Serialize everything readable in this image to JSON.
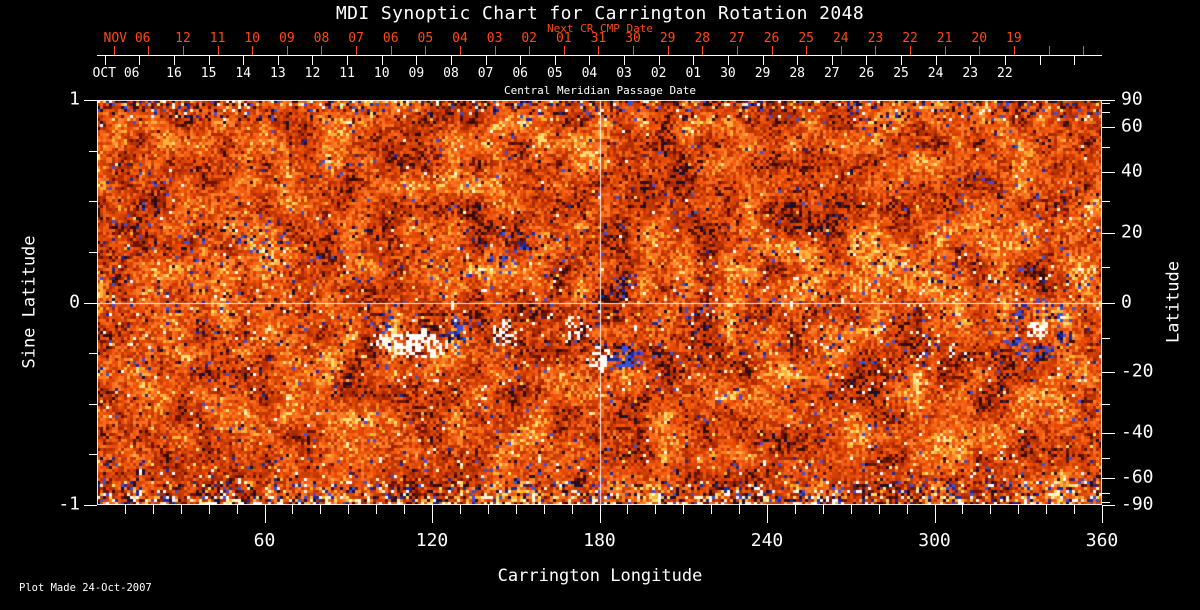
{
  "title": "MDI Synoptic Chart for Carrington Rotation 2048",
  "top_axis": {
    "next_cr_label": "Next CR CMP Date",
    "next_cr_month": "NOV 06",
    "next_cr_days": [
      "12",
      "11",
      "10",
      "09",
      "08",
      "07",
      "06",
      "05",
      "04",
      "03",
      "02",
      "01",
      "31",
      "30",
      "29",
      "28",
      "27",
      "26",
      "25",
      "24",
      "23",
      "22",
      "21",
      "20",
      "19"
    ],
    "cmp_month": "OCT 06",
    "cmp_days": [
      "16",
      "15",
      "14",
      "13",
      "12",
      "11",
      "10",
      "09",
      "08",
      "07",
      "06",
      "05",
      "04",
      "03",
      "02",
      "01",
      "30",
      "29",
      "28",
      "27",
      "26",
      "25",
      "24",
      "23",
      "22"
    ],
    "cmp_axis_label": "Central Meridian Passage Date"
  },
  "left_axis": {
    "label": "Sine Latitude",
    "ticks": [
      "1",
      "0",
      "-1"
    ]
  },
  "right_axis": {
    "label": "Latitude",
    "ticks": [
      "90",
      "60",
      "40",
      "20",
      "0",
      "-20",
      "-40",
      "-60",
      "-90"
    ]
  },
  "bottom_axis": {
    "label": "Carrington Longitude",
    "ticks": [
      "60",
      "120",
      "180",
      "240",
      "300",
      "360"
    ]
  },
  "footer": {
    "text": "Plot Made 24-Oct-2007"
  },
  "colors": {
    "background": "#000000",
    "text": "#ffffff",
    "accent_red": "#ff4a14",
    "field_base": "#e04a08",
    "positive_flux": "#ffffff",
    "negative_flux": "#1c2aa0"
  },
  "chart_data": {
    "type": "heatmap",
    "title": "MDI Synoptic Chart for Carrington Rotation 2048",
    "xlabel": "Carrington Longitude",
    "ylabel_left": "Sine Latitude",
    "ylabel_right": "Latitude",
    "x_range": [
      0,
      360
    ],
    "y_range_sine_latitude": [
      -1,
      1
    ],
    "x_tick_values": [
      60,
      120,
      180,
      240,
      300,
      360
    ],
    "left_tick_values": [
      1,
      0,
      -1
    ],
    "right_tick_values": [
      90,
      60,
      40,
      20,
      0,
      -20,
      -40,
      -60,
      -90
    ],
    "reference_lines": {
      "carrington_longitude": 180,
      "sine_latitude": 0
    },
    "colormap": "orange-red photospheric noise; white and pale yellow = strong positive magnetic flux; dark navy blue = strong negative magnetic flux; streaky speckled bands at polar (top/bottom) edges",
    "active_regions": [
      {
        "longitude": 113,
        "sine_latitude": -0.2,
        "rx_deg": 15,
        "ry_sine": 0.085,
        "polarity": 1,
        "density": 0.6,
        "note": "large bright positive cluster"
      },
      {
        "longitude": 146,
        "sine_latitude": -0.16,
        "rx_deg": 6,
        "ry_sine": 0.07,
        "polarity": 1,
        "density": 0.45
      },
      {
        "longitude": 129,
        "sine_latitude": -0.13,
        "rx_deg": 6.5,
        "ry_sine": 0.095,
        "polarity": -1,
        "density": 0.5,
        "note": "dark negative cluster"
      },
      {
        "longitude": 103,
        "sine_latitude": -0.1,
        "rx_deg": 5,
        "ry_sine": 0.06,
        "polarity": -1,
        "density": 0.3
      },
      {
        "longitude": 171,
        "sine_latitude": -0.13,
        "rx_deg": 6,
        "ry_sine": 0.08,
        "polarity": 1,
        "density": 0.3
      },
      {
        "longitude": 180.5,
        "sine_latitude": -0.28,
        "rx_deg": 4.5,
        "ry_sine": 0.07,
        "polarity": 1,
        "density": 0.62
      },
      {
        "longitude": 189,
        "sine_latitude": -0.28,
        "rx_deg": 7,
        "ry_sine": 0.08,
        "polarity": -1,
        "density": 0.62
      },
      {
        "longitude": 187,
        "sine_latitude": 0.07,
        "rx_deg": 4,
        "ry_sine": 0.06,
        "polarity": -1,
        "density": 0.3
      },
      {
        "longitude": 217,
        "sine_latitude": -0.05,
        "rx_deg": 8,
        "ry_sine": 0.1,
        "polarity": -1,
        "density": 0.13
      },
      {
        "longitude": 60,
        "sine_latitude": 0.33,
        "rx_deg": 10,
        "ry_sine": 0.13,
        "polarity": -1,
        "density": 0.1
      },
      {
        "longitude": 150,
        "sine_latitude": 0.25,
        "rx_deg": 11,
        "ry_sine": 0.12,
        "polarity": -1,
        "density": 0.08
      },
      {
        "longitude": 337,
        "sine_latitude": -0.13,
        "rx_deg": 4.5,
        "ry_sine": 0.06,
        "polarity": 1,
        "density": 0.7,
        "note": "bright positive core"
      },
      {
        "longitude": 337,
        "sine_latitude": -0.13,
        "rx_deg": 11,
        "ry_sine": 0.14,
        "polarity": -1,
        "density": 0.26,
        "ring": true,
        "note": "negative speckle surrounding core"
      },
      {
        "longitude": 300,
        "sine_latitude": -0.22,
        "rx_deg": 12,
        "ry_sine": 0.1,
        "polarity": 1,
        "density": 0.05
      }
    ]
  }
}
